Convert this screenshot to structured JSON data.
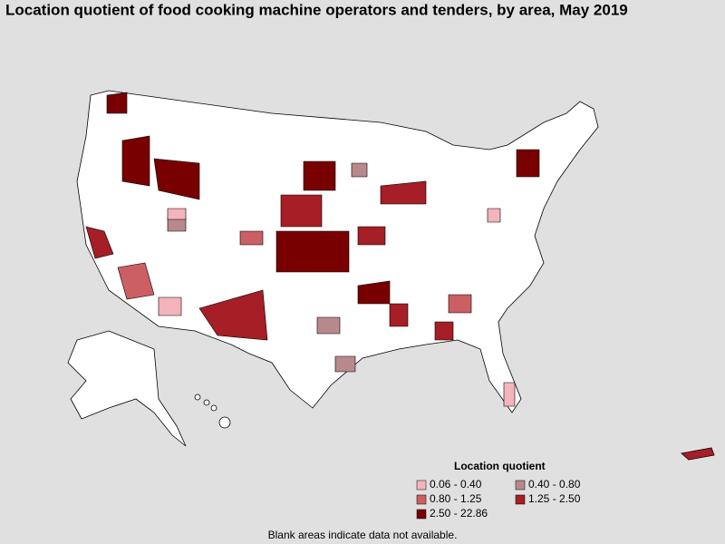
{
  "title": "Location quotient of food cooking machine operators and tenders, by area, May 2019",
  "legend": {
    "title": "Location quotient",
    "items": [
      {
        "label": "0.06 - 0.40",
        "color": "#f4b4bc"
      },
      {
        "label": "0.40 - 0.80",
        "color": "#b8898c"
      },
      {
        "label": "0.80 - 1.25",
        "color": "#cc5f63"
      },
      {
        "label": "1.25 - 2.50",
        "color": "#a61e26"
      },
      {
        "label": "2.50 - 22.86",
        "color": "#780000"
      }
    ]
  },
  "note": "Blank areas indicate data not available."
}
